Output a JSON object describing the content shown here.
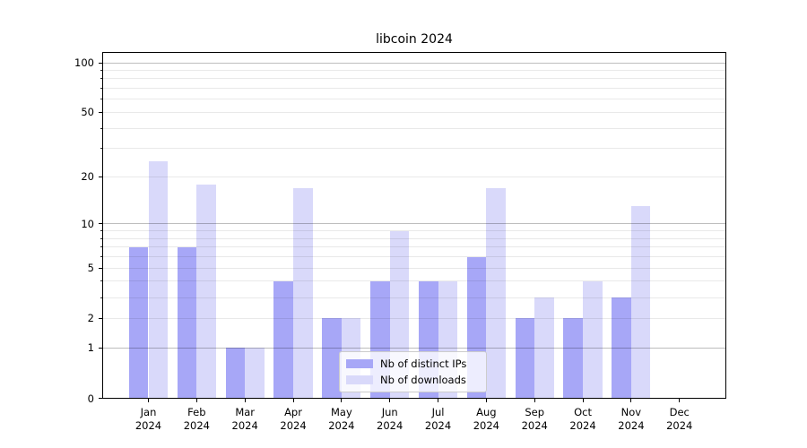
{
  "page": {
    "background": "#ffffff"
  },
  "chart_data": {
    "type": "bar",
    "title": "libcoin 2024",
    "categories": [
      "Jan",
      "Feb",
      "Mar",
      "Apr",
      "May",
      "Jun",
      "Jul",
      "Aug",
      "Sep",
      "Oct",
      "Nov",
      "Dec"
    ],
    "category_sub": "2024",
    "series": [
      {
        "name": "Nb of distinct IPs",
        "color": "#a7a7f7",
        "values": [
          7,
          7,
          1,
          4,
          2,
          4,
          4,
          6,
          2,
          2,
          3,
          0
        ]
      },
      {
        "name": "Nb of downloads",
        "color": "#d9d9fa",
        "values": [
          25,
          18,
          1,
          17,
          2,
          9,
          4,
          17,
          3,
          4,
          13,
          0
        ]
      }
    ],
    "yscale": "log1p",
    "ylim": [
      0,
      117
    ],
    "y_ticks": [
      0,
      1,
      2,
      5,
      10,
      20,
      50,
      100
    ],
    "y_grid_major": [
      1,
      10,
      100
    ],
    "y_grid_minor": [
      2,
      3,
      4,
      5,
      6,
      7,
      8,
      9,
      20,
      30,
      40,
      50,
      60,
      70,
      80,
      90
    ],
    "grid": "on",
    "legend_position": "lower center",
    "xlabel": "",
    "ylabel": ""
  }
}
